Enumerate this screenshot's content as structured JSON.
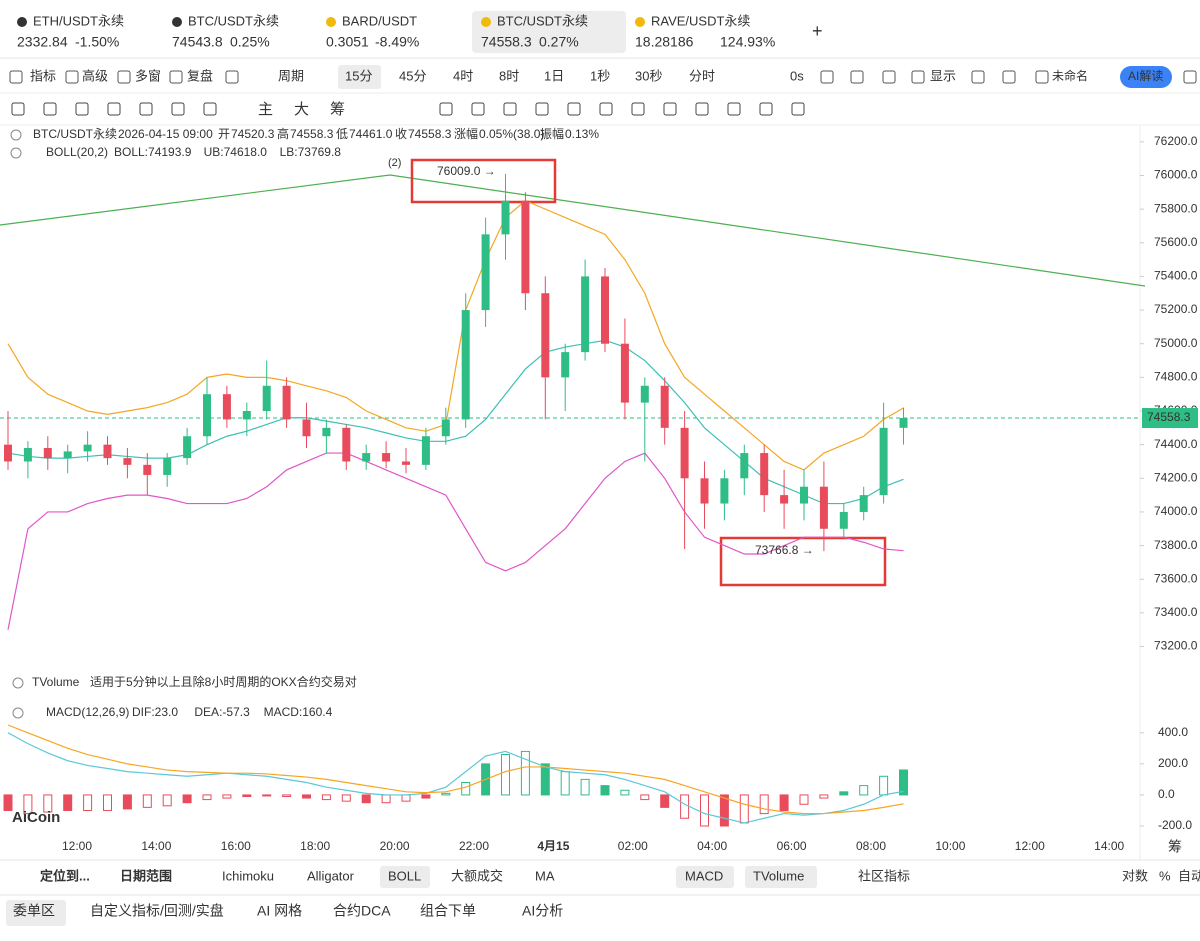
{
  "tabs": [
    {
      "name": "ETH/USDT永续",
      "price": "2332.84",
      "change": "-1.50%",
      "price_color": "#222222",
      "change_color": "#e84b5b"
    },
    {
      "name": "BTC/USDT永续",
      "price": "74543.8",
      "change": "0.25%",
      "price_color": "#1fa57a",
      "change_color": "#1fa57a"
    },
    {
      "name": "BARD/USDT",
      "price": "0.3051",
      "change": "-8.49%",
      "price_color": "#e84b5b",
      "change_color": "#e84b5b"
    },
    {
      "name": "BTC/USDT永续",
      "price": "74558.3",
      "change": "0.27%",
      "price_color": "#1fa57a",
      "change_color": "#1fa57a"
    },
    {
      "name": "RAVE/USDT永续",
      "price": "18.28186",
      "change": "124.93%",
      "price_color": "#1fa57a",
      "change_color": "#1fa57a"
    }
  ],
  "toolbar": [
    "指标",
    "高级",
    "多窗",
    "复盘",
    "周期",
    "15分",
    "45分",
    "4时",
    "8时",
    "1日",
    "1秒",
    "30秒",
    "分时",
    "0s",
    "显示",
    "未命名",
    "AI解读"
  ],
  "draw_tools": [
    "主",
    "大",
    "筹"
  ],
  "info": {
    "symbol": "BTC/USDT永续",
    "time": "2026-04-15 09:00",
    "fields": [
      [
        "开",
        "74520.3"
      ],
      [
        "高",
        "74558.3"
      ],
      [
        "低",
        "74461.0"
      ],
      [
        "收",
        "74558.3"
      ],
      [
        "涨幅",
        "0.05%(38.0)"
      ],
      [
        "振幅",
        "0.13%"
      ]
    ]
  },
  "boll_info": {
    "name": "BOLL(20,2)",
    "fields": [
      "BOLL:74193.9",
      "UB:74618.0",
      "LB:73769.8"
    ]
  },
  "tvolume_info": {
    "name": "TVolume",
    "note": "适用于5分钟以上且除8小时周期的OKX合约交易对"
  },
  "macd_info": {
    "name": "MACD(12,26,9)",
    "fields": [
      "DIF:23.0",
      "DEA:-57.3",
      "MACD:160.4"
    ]
  },
  "annotations": {
    "high": "76009.0 →",
    "low": "73766.8 →",
    "wave": "(2)"
  },
  "logo": "AiCoin",
  "axis_corner": "筹",
  "candles": {
    "ylim": [
      73120,
      76300
    ],
    "up_color": "#2ebd85",
    "down_color": "#e84b5b",
    "yticks": [
      {
        "value": 76200,
        "label": "76200.0"
      },
      {
        "value": 76000,
        "label": "76000.0"
      },
      {
        "value": 75800,
        "label": "75800.0"
      },
      {
        "value": 75600,
        "label": "75600.0"
      },
      {
        "value": 75400,
        "label": "75400.0"
      },
      {
        "value": 75200,
        "label": "75200.0"
      },
      {
        "value": 75000,
        "label": "75000.0"
      },
      {
        "value": 74800,
        "label": "74800.0"
      },
      {
        "value": 74600,
        "label": "74600.0"
      },
      {
        "value": 74400,
        "label": "74400.0"
      },
      {
        "value": 74200,
        "label": "74200.0"
      },
      {
        "value": 74000,
        "label": "74000.0"
      },
      {
        "value": 73800,
        "label": "73800.0"
      },
      {
        "value": 73600,
        "label": "73600.0"
      },
      {
        "value": 73400,
        "label": "73400.0"
      },
      {
        "value": 73200,
        "label": "73200.0"
      }
    ],
    "current": 74558.3,
    "ohlc": [
      [
        74400,
        74600,
        74250,
        74300
      ],
      [
        74300,
        74420,
        74200,
        74380
      ],
      [
        74380,
        74450,
        74250,
        74320
      ],
      [
        74320,
        74400,
        74230,
        74360
      ],
      [
        74360,
        74480,
        74300,
        74400
      ],
      [
        74400,
        74450,
        74280,
        74320
      ],
      [
        74320,
        74380,
        74200,
        74280
      ],
      [
        74280,
        74350,
        74100,
        74220
      ],
      [
        74220,
        74350,
        74150,
        74320
      ],
      [
        74320,
        74500,
        74280,
        74450
      ],
      [
        74450,
        74800,
        74400,
        74700
      ],
      [
        74700,
        74750,
        74500,
        74550
      ],
      [
        74550,
        74650,
        74450,
        74600
      ],
      [
        74600,
        74900,
        74550,
        74750
      ],
      [
        74750,
        74800,
        74500,
        74550
      ],
      [
        74550,
        74650,
        74380,
        74450
      ],
      [
        74450,
        74550,
        74350,
        74500
      ],
      [
        74500,
        74520,
        74250,
        74300
      ],
      [
        74300,
        74400,
        74250,
        74350
      ],
      [
        74350,
        74420,
        74260,
        74300
      ],
      [
        74300,
        74380,
        74230,
        74280
      ],
      [
        74280,
        74500,
        74250,
        74450
      ],
      [
        74450,
        74620,
        74400,
        74550
      ],
      [
        74550,
        75300,
        74500,
        75200
      ],
      [
        75200,
        75750,
        75100,
        75650
      ],
      [
        75650,
        76009,
        75500,
        75850
      ],
      [
        75850,
        75900,
        75200,
        75300
      ],
      [
        75300,
        75400,
        74550,
        74800
      ],
      [
        74800,
        75000,
        74600,
        74950
      ],
      [
        74950,
        75500,
        74900,
        75400
      ],
      [
        75400,
        75450,
        74950,
        75000
      ],
      [
        75000,
        75150,
        74550,
        74650
      ],
      [
        74650,
        74800,
        74300,
        74750
      ],
      [
        74750,
        74800,
        74400,
        74500
      ],
      [
        74500,
        74600,
        73780,
        74200
      ],
      [
        74200,
        74300,
        73900,
        74050
      ],
      [
        74050,
        74250,
        73950,
        74200
      ],
      [
        74200,
        74400,
        74100,
        74350
      ],
      [
        74350,
        74400,
        74000,
        74100
      ],
      [
        74100,
        74250,
        73900,
        74050
      ],
      [
        74050,
        74250,
        73950,
        74150
      ],
      [
        74150,
        74300,
        73767,
        73900
      ],
      [
        73900,
        74050,
        73850,
        74000
      ],
      [
        74000,
        74150,
        73950,
        74100
      ],
      [
        74100,
        74650,
        74050,
        74500
      ],
      [
        74500,
        74620,
        74400,
        74558.3
      ]
    ],
    "boll": [
      {
        "name": "BOLL",
        "color": "#3cc0b5",
        "values": [
          74350,
          74330,
          74320,
          74320,
          74330,
          74340,
          74330,
          74320,
          74320,
          74340,
          74400,
          74450,
          74480,
          74520,
          74560,
          74560,
          74540,
          74520,
          74500,
          74470,
          74440,
          74420,
          74420,
          74450,
          74550,
          74700,
          74850,
          74950,
          74980,
          75000,
          75020,
          74980,
          74900,
          74780,
          74650,
          74500,
          74400,
          74300,
          74200,
          74150,
          74100,
          74050,
          74050,
          74080,
          74150,
          74193.9
        ]
      },
      {
        "name": "UB",
        "color": "#f5a623",
        "values": [
          75000,
          74800,
          74700,
          74650,
          74600,
          74580,
          74600,
          74620,
          74650,
          74700,
          74800,
          74820,
          74800,
          74800,
          74780,
          74750,
          74720,
          74680,
          74600,
          74550,
          74500,
          74480,
          74520,
          75200,
          75500,
          75750,
          75850,
          75800,
          75750,
          75700,
          75650,
          75500,
          75300,
          75000,
          74800,
          74700,
          74600,
          74500,
          74400,
          74300,
          74250,
          74350,
          74400,
          74450,
          74550,
          74618
        ]
      },
      {
        "name": "LB",
        "color": "#e056c8",
        "values": [
          73300,
          73900,
          74000,
          74000,
          74050,
          74080,
          74100,
          74100,
          74080,
          74050,
          74050,
          74050,
          74080,
          74150,
          74250,
          74300,
          74350,
          74350,
          74300,
          74250,
          74200,
          74150,
          74100,
          73900,
          73700,
          73650,
          73700,
          73800,
          73900,
          74050,
          74200,
          74300,
          74350,
          74200,
          74000,
          73850,
          73800,
          73750,
          73750,
          73800,
          73850,
          73850,
          73850,
          73820,
          73780,
          73769.8
        ]
      }
    ]
  },
  "macd": {
    "ylim": [
      -290,
      450
    ],
    "yticks": [
      {
        "value": 400,
        "label": "400.0"
      },
      {
        "value": 200,
        "label": "200.0"
      },
      {
        "value": 0,
        "label": "0.0"
      },
      {
        "value": -200,
        "label": "-200.0"
      }
    ],
    "hist": [
      -100,
      -120,
      -110,
      -100,
      -100,
      -100,
      -90,
      -80,
      -70,
      -50,
      -30,
      -20,
      -10,
      -5,
      -10,
      -20,
      -30,
      -40,
      -50,
      -50,
      -40,
      -20,
      10,
      80,
      200,
      260,
      280,
      200,
      150,
      100,
      60,
      30,
      -30,
      -80,
      -150,
      -200,
      -200,
      -180,
      -120,
      -100,
      -60,
      -20,
      20,
      60,
      120,
      160.4
    ],
    "lines": [
      {
        "name": "DIF",
        "color": "#5bc8d8",
        "values": [
          400,
          330,
          270,
          220,
          190,
          170,
          150,
          140,
          130,
          120,
          130,
          140,
          130,
          120,
          100,
          80,
          50,
          30,
          10,
          0,
          0,
          10,
          50,
          150,
          250,
          280,
          230,
          180,
          150,
          140,
          130,
          100,
          60,
          20,
          -60,
          -120,
          -150,
          -180,
          -150,
          -120,
          -130,
          -120,
          -100,
          -60,
          0,
          23
        ]
      },
      {
        "name": "DEA",
        "color": "#f5a623",
        "values": [
          450,
          400,
          350,
          300,
          260,
          230,
          200,
          180,
          160,
          150,
          145,
          140,
          140,
          135,
          125,
          115,
          100,
          80,
          60,
          40,
          20,
          15,
          20,
          50,
          100,
          150,
          180,
          180,
          170,
          160,
          150,
          140,
          120,
          100,
          60,
          20,
          -20,
          -60,
          -90,
          -110,
          -120,
          -120,
          -110,
          -100,
          -80,
          -57.3
        ]
      }
    ]
  },
  "time_axis": [
    "12:00",
    "14:00",
    "16:00",
    "18:00",
    "20:00",
    "22:00",
    "4月15",
    "02:00",
    "04:00",
    "06:00",
    "08:00",
    "10:00",
    "12:00",
    "14:00"
  ],
  "indicator_bar": [
    "定位到...",
    "日期范围",
    "Ichimoku",
    "Alligator",
    "BOLL",
    "大额成交",
    "MA",
    "MACD",
    "TVolume",
    "社区指标",
    "对数",
    "%",
    "自动"
  ],
  "bottom_tabs": [
    "委单区",
    "自定义指标/回测/实盘",
    "AI 网格",
    "合约DCA",
    "组合下单",
    "AI分析"
  ]
}
